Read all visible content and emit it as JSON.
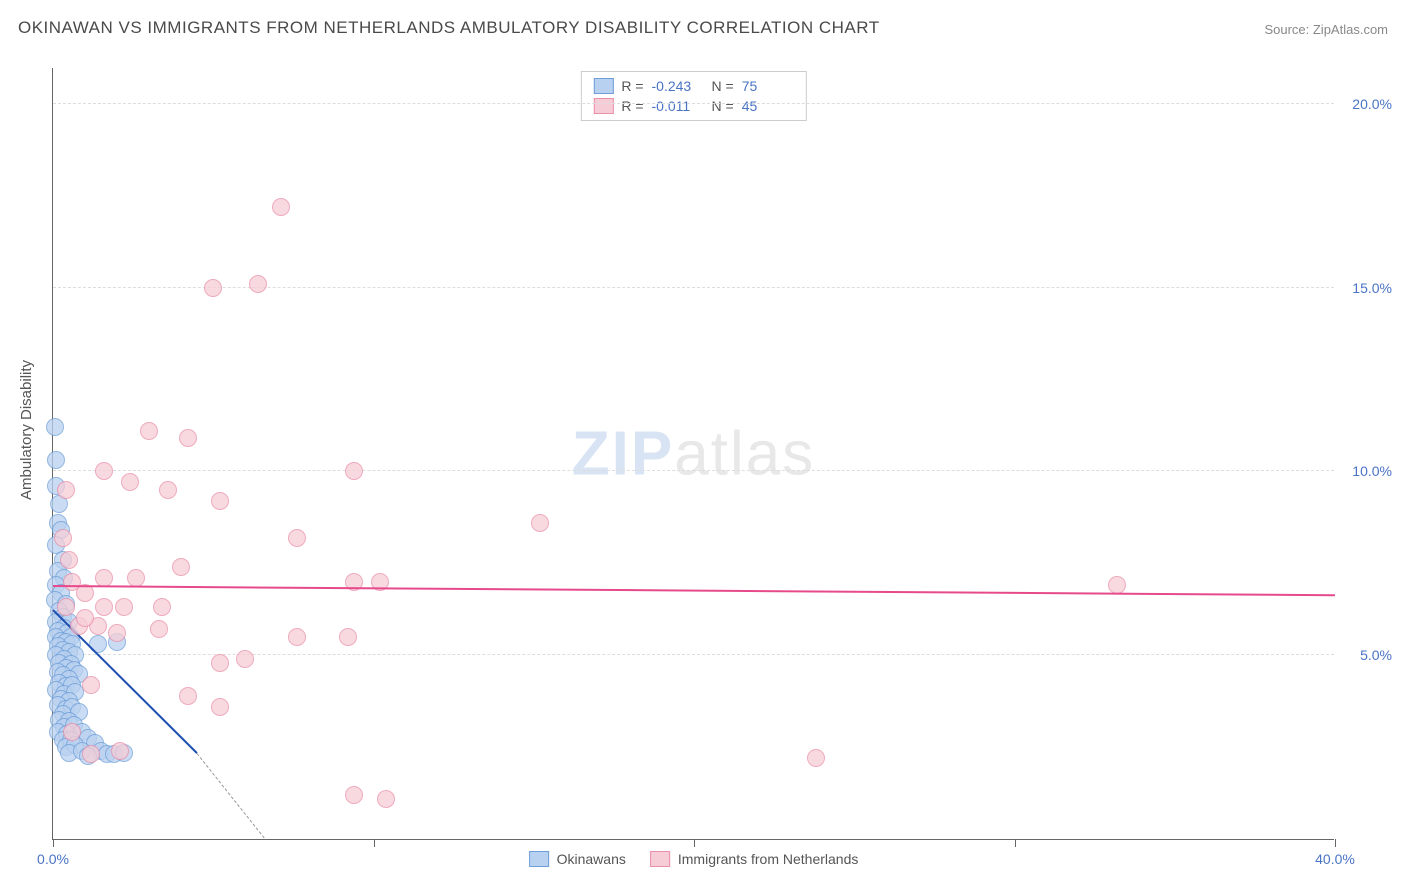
{
  "title": "OKINAWAN VS IMMIGRANTS FROM NETHERLANDS AMBULATORY DISABILITY CORRELATION CHART",
  "source": "Source: ZipAtlas.com",
  "y_axis_title": "Ambulatory Disability",
  "watermark": {
    "zip": "ZIP",
    "atlas": "atlas"
  },
  "chart": {
    "type": "scatter",
    "xlim": [
      0,
      40
    ],
    "ylim": [
      0,
      21
    ],
    "x_ticks": [
      0,
      10,
      20,
      30,
      40
    ],
    "x_tick_labels": [
      "0.0%",
      "",
      "",
      "",
      "40.0%"
    ],
    "y_ticks": [
      5,
      10,
      15,
      20
    ],
    "y_tick_labels": [
      "5.0%",
      "10.0%",
      "15.0%",
      "20.0%"
    ],
    "grid_color": "#dddddd",
    "background_color": "#ffffff",
    "point_radius": 9,
    "series": [
      {
        "name": "Okinawans",
        "fill": "#b9d1f0",
        "stroke": "#6f9fd8",
        "trend_color": "#1f4fb0",
        "r": "-0.243",
        "n": "75",
        "trend": {
          "x1": 0,
          "y1": 6.2,
          "x2": 4.5,
          "y2": 2.3,
          "dash_to_x": 6.6,
          "dash_to_y": 0
        },
        "points": [
          [
            0.05,
            11.2
          ],
          [
            0.1,
            10.3
          ],
          [
            0.1,
            9.6
          ],
          [
            0.2,
            9.1
          ],
          [
            0.15,
            8.6
          ],
          [
            0.25,
            8.4
          ],
          [
            0.1,
            8.0
          ],
          [
            0.3,
            7.6
          ],
          [
            0.15,
            7.3
          ],
          [
            0.35,
            7.1
          ],
          [
            0.1,
            6.9
          ],
          [
            0.25,
            6.7
          ],
          [
            0.05,
            6.5
          ],
          [
            0.4,
            6.4
          ],
          [
            0.2,
            6.2
          ],
          [
            0.3,
            6.05
          ],
          [
            0.1,
            5.9
          ],
          [
            0.5,
            5.9
          ],
          [
            0.35,
            5.75
          ],
          [
            0.15,
            5.65
          ],
          [
            0.45,
            5.6
          ],
          [
            0.1,
            5.5
          ],
          [
            0.55,
            5.5
          ],
          [
            0.25,
            5.4
          ],
          [
            0.4,
            5.35
          ],
          [
            0.15,
            5.25
          ],
          [
            0.6,
            5.3
          ],
          [
            0.3,
            5.15
          ],
          [
            0.5,
            5.1
          ],
          [
            0.1,
            5.0
          ],
          [
            0.7,
            5.0
          ],
          [
            0.35,
            4.9
          ],
          [
            0.2,
            4.8
          ],
          [
            0.55,
            4.75
          ],
          [
            0.4,
            4.65
          ],
          [
            0.15,
            4.55
          ],
          [
            0.65,
            4.6
          ],
          [
            0.3,
            4.45
          ],
          [
            0.8,
            4.5
          ],
          [
            0.5,
            4.35
          ],
          [
            0.2,
            4.25
          ],
          [
            0.4,
            4.15
          ],
          [
            0.6,
            4.2
          ],
          [
            0.1,
            4.05
          ],
          [
            0.35,
            3.95
          ],
          [
            0.7,
            4.0
          ],
          [
            0.25,
            3.8
          ],
          [
            0.5,
            3.75
          ],
          [
            0.15,
            3.65
          ],
          [
            0.4,
            3.55
          ],
          [
            0.6,
            3.6
          ],
          [
            0.3,
            3.4
          ],
          [
            0.8,
            3.45
          ],
          [
            0.2,
            3.25
          ],
          [
            0.5,
            3.2
          ],
          [
            0.35,
            3.05
          ],
          [
            0.65,
            3.1
          ],
          [
            0.15,
            2.9
          ],
          [
            0.45,
            2.85
          ],
          [
            0.9,
            2.9
          ],
          [
            0.3,
            2.7
          ],
          [
            0.55,
            2.7
          ],
          [
            1.1,
            2.75
          ],
          [
            0.4,
            2.5
          ],
          [
            0.7,
            2.55
          ],
          [
            1.3,
            2.6
          ],
          [
            0.5,
            2.35
          ],
          [
            0.9,
            2.4
          ],
          [
            1.5,
            2.4
          ],
          [
            1.1,
            2.25
          ],
          [
            1.7,
            2.3
          ],
          [
            1.9,
            2.3
          ],
          [
            2.2,
            2.35
          ],
          [
            1.4,
            5.3
          ],
          [
            2.0,
            5.35
          ]
        ]
      },
      {
        "name": "Immigrants from Netherlands",
        "fill": "#f6cdd6",
        "stroke": "#e98fa8",
        "trend_color": "#e74a8c",
        "r": "-0.011",
        "n": "45",
        "trend": {
          "x1": 0,
          "y1": 6.85,
          "x2": 40,
          "y2": 6.6
        },
        "points": [
          [
            7.1,
            17.2
          ],
          [
            5.0,
            15.0
          ],
          [
            6.4,
            15.1
          ],
          [
            3.0,
            11.1
          ],
          [
            4.2,
            10.9
          ],
          [
            1.6,
            10.0
          ],
          [
            2.4,
            9.7
          ],
          [
            3.6,
            9.5
          ],
          [
            5.2,
            9.2
          ],
          [
            9.4,
            10.0
          ],
          [
            7.6,
            8.2
          ],
          [
            15.2,
            8.6
          ],
          [
            10.2,
            7.0
          ],
          [
            9.4,
            7.0
          ],
          [
            4.0,
            7.4
          ],
          [
            2.6,
            7.1
          ],
          [
            1.6,
            7.1
          ],
          [
            0.6,
            7.0
          ],
          [
            1.0,
            6.7
          ],
          [
            0.4,
            6.3
          ],
          [
            1.6,
            6.3
          ],
          [
            2.2,
            6.3
          ],
          [
            3.4,
            6.3
          ],
          [
            0.8,
            5.8
          ],
          [
            1.4,
            5.8
          ],
          [
            2.0,
            5.6
          ],
          [
            3.3,
            5.7
          ],
          [
            5.2,
            4.8
          ],
          [
            6.0,
            4.9
          ],
          [
            7.6,
            5.5
          ],
          [
            9.2,
            5.5
          ],
          [
            1.2,
            4.2
          ],
          [
            4.2,
            3.9
          ],
          [
            5.2,
            3.6
          ],
          [
            0.6,
            2.9
          ],
          [
            1.2,
            2.3
          ],
          [
            2.1,
            2.4
          ],
          [
            9.4,
            1.2
          ],
          [
            10.4,
            1.1
          ],
          [
            23.8,
            2.2
          ],
          [
            33.2,
            6.9
          ],
          [
            0.4,
            9.5
          ],
          [
            0.3,
            8.2
          ],
          [
            0.5,
            7.6
          ],
          [
            1.0,
            6.0
          ]
        ]
      }
    ]
  },
  "bottom_legend": [
    {
      "label": "Okinawans",
      "fill": "#b9d1f0",
      "stroke": "#6f9fd8"
    },
    {
      "label": "Immigrants from Netherlands",
      "fill": "#f6cdd6",
      "stroke": "#e98fa8"
    }
  ]
}
